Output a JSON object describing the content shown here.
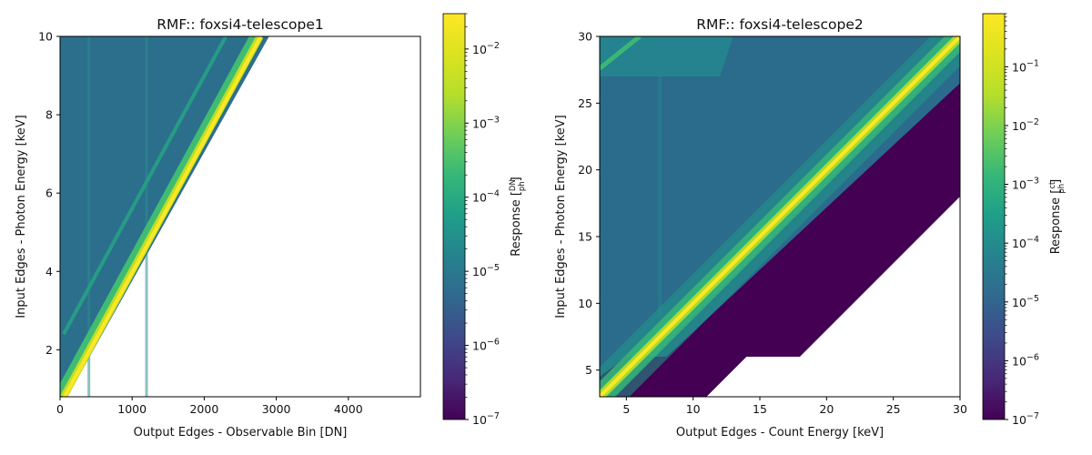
{
  "chart_data": [
    {
      "type": "heatmap",
      "title": "RMF:: foxsi4-telescope1",
      "xlabel": "Output Edges - Observable Bin [DN]",
      "ylabel": "Input Edges - Photon Energy [keV]",
      "xlim": [
        0,
        5000
      ],
      "ylim": [
        0.8,
        10
      ],
      "xticks": [
        "0",
        "1000",
        "2000",
        "3000",
        "4000"
      ],
      "xtick_values": [
        0,
        1000,
        2000,
        3000,
        4000
      ],
      "yticks": [
        "2",
        "4",
        "6",
        "8",
        "10"
      ],
      "ytick_values": [
        2,
        4,
        6,
        8,
        10
      ],
      "colorbar": {
        "label_main": "Response [",
        "label_num": "DN",
        "label_den": "ph",
        "label_close": "]",
        "scale": "log",
        "range": [
          1e-07,
          0.03
        ],
        "tick_mantissa": "10",
        "tick_exponents": [
          "−7",
          "−6",
          "−5",
          "−4",
          "−3",
          "−2"
        ],
        "tick_values": [
          1e-07,
          1e-06,
          1e-05,
          0.0001,
          0.001,
          0.01
        ]
      },
      "features": {
        "main_diagonal": {
          "points": [
            [
              100,
              0.8
            ],
            [
              2900,
              10
            ]
          ],
          "peak_response": 0.025
        },
        "secondary_line": {
          "points": [
            [
              50,
              2.4
            ],
            [
              2300,
              10
            ]
          ],
          "response": 0.0005
        },
        "vertical_streaks_dn": [
          400,
          1200
        ],
        "background_response": 3e-05
      },
      "colormap": "viridis"
    },
    {
      "type": "heatmap",
      "title": "RMF:: foxsi4-telescope2",
      "xlabel": "Output Edges - Count Energy [keV]",
      "ylabel": "Input Edges - Photon Energy [keV]",
      "xlim": [
        3,
        30
      ],
      "ylim": [
        3,
        30
      ],
      "xticks": [
        "5",
        "10",
        "15",
        "20",
        "25",
        "30"
      ],
      "xtick_values": [
        5,
        10,
        15,
        20,
        25,
        30
      ],
      "yticks": [
        "5",
        "10",
        "15",
        "20",
        "25",
        "30"
      ],
      "ytick_values": [
        5,
        10,
        15,
        20,
        25,
        30
      ],
      "colorbar": {
        "label_main": "Response [",
        "label_num": "ct",
        "label_den": "ph",
        "label_close": "]",
        "scale": "log",
        "range": [
          1e-07,
          0.8
        ],
        "tick_mantissa": "10",
        "tick_exponents": [
          "−7",
          "−6",
          "−5",
          "−4",
          "−3",
          "−2",
          "−1"
        ],
        "tick_values": [
          1e-07,
          1e-06,
          1e-05,
          0.0001,
          0.001,
          0.01,
          0.1
        ]
      },
      "features": {
        "main_diagonal": {
          "points": [
            [
              3,
              3
            ],
            [
              30,
              30
            ]
          ],
          "peak_response": 0.5
        },
        "upper_band_response": 0.001,
        "floor_region_response": 1e-07,
        "vertical_streak_kev": 7.5,
        "background_response": 3e-05
      },
      "colormap": "viridis"
    }
  ]
}
